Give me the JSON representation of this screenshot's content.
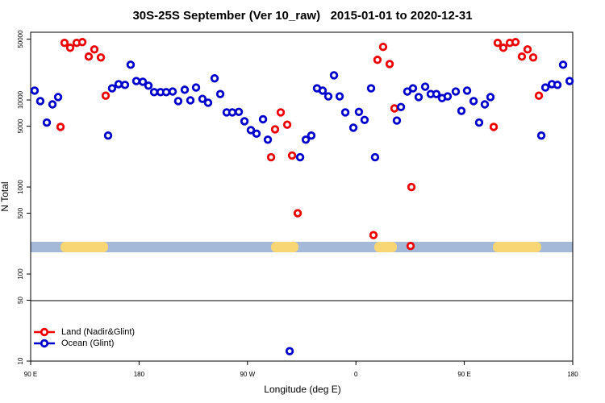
{
  "chart_data": {
    "type": "scatter",
    "title": "30S-25S September (Ver 10_raw)   2015-01-01 to 2020-12-31",
    "xlabel": "Longitude (deg E)",
    "ylabel": "N Total",
    "xlim": [
      90,
      540
    ],
    "xticks": [
      {
        "value": 90,
        "label": "90 E"
      },
      180,
      {
        "value": 270,
        "label": "90 W"
      },
      {
        "value": 360,
        "label": "0"
      },
      {
        "value": 450,
        "label": "90 E"
      },
      {
        "value": 540,
        "label": "180"
      }
    ],
    "ylim": [
      10,
      60000
    ],
    "log_y": true,
    "yticks": [
      10,
      50,
      100,
      500,
      1000,
      5000,
      10000,
      50000
    ],
    "legend": "lower left",
    "series": [
      {
        "name": "Land (Nadir&Glint)",
        "color": "#ee0000",
        "x": [
          114.8,
          118.1,
          122.8,
          128.2,
          132.9,
          138.2,
          142.9,
          148.3,
          152.3,
          289.6,
          292.9,
          297.6,
          303,
          307,
          311.7,
          374.6,
          377.9,
          382.6,
          388,
          392,
          405.4,
          406.1,
          474.4,
          477.7,
          482.4,
          487.8,
          492.5,
          497.8,
          502.5,
          507.2,
          511.9
        ],
        "values": [
          4900,
          45300,
          39800,
          45300,
          46200,
          31500,
          38100,
          30800,
          11200,
          2200,
          4600,
          7200,
          5200,
          2300,
          500,
          280,
          28900,
          40700,
          25900,
          8000,
          210,
          1000,
          4900,
          45300,
          39800,
          45300,
          46200,
          31500,
          38100,
          30800,
          11200
        ]
      },
      {
        "name": "Ocean (Glint)",
        "color": "#0000cc",
        "x": [
          93.3,
          98,
          103.4,
          108.1,
          112.8,
          154.3,
          157.6,
          163,
          168.3,
          173,
          177.7,
          183.1,
          187.8,
          192.5,
          197.8,
          202.5,
          207.9,
          212.5,
          217.9,
          222.6,
          227.3,
          232.6,
          237.3,
          242.7,
          247.4,
          252.7,
          257.4,
          262.8,
          267.5,
          272.8,
          277.5,
          282.9,
          286.9,
          305,
          313.7,
          318.4,
          323,
          327.7,
          332.4,
          337.1,
          341.8,
          346.5,
          351.2,
          357.9,
          362.5,
          367.2,
          372.6,
          375.9,
          394,
          397.4,
          402.7,
          407.4,
          412.1,
          417.5,
          422.1,
          426.8,
          431.5,
          436.2,
          442.9,
          447.6,
          452.3,
          457.7,
          462.3,
          467,
          471.7,
          513.9,
          517.3,
          522.7,
          527.3,
          532,
          537.4
        ],
        "values": [
          12800,
          9700,
          5500,
          8900,
          10800,
          3900,
          13600,
          15200,
          14900,
          25400,
          16500,
          16200,
          14600,
          12300,
          12300,
          12300,
          12500,
          9700,
          13100,
          9900,
          13900,
          10300,
          9300,
          17700,
          11700,
          7200,
          7200,
          7300,
          5700,
          4500,
          4100,
          6000,
          3500,
          13,
          2200,
          3500,
          3900,
          13600,
          12800,
          11000,
          19200,
          11000,
          7200,
          4800,
          7300,
          5900,
          13600,
          2200,
          5800,
          8300,
          12500,
          13600,
          10800,
          14200,
          11700,
          11700,
          10500,
          11000,
          12500,
          7500,
          12800,
          9700,
          5500,
          8900,
          10800,
          3900,
          13900,
          15200,
          14900,
          25400,
          16500
        ]
      }
    ]
  }
}
